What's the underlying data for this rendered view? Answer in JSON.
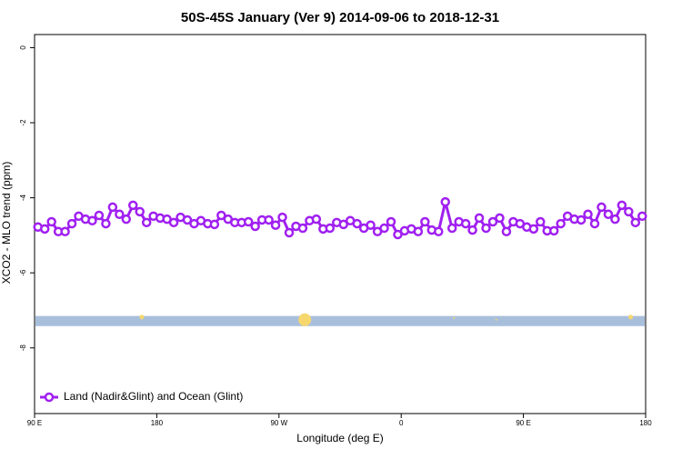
{
  "chart_data": {
    "type": "line",
    "title": "50S-45S January (Ver 9)   2014-09-06 to 2018-12-31",
    "x_label": "Longitude (deg E)",
    "y_label": "XCO2 - MLO trend (ppm)",
    "xlim": [
      90,
      540
    ],
    "xticks": [
      {
        "value": 90,
        "label": "90 E"
      },
      180,
      {
        "value": 270,
        "label": "90 W"
      },
      {
        "value": 360,
        "label": "0"
      },
      {
        "value": 450,
        "label": "90 E"
      },
      {
        "value": 540,
        "label": "180"
      }
    ],
    "ylim": [
      -9.75,
      0.35
    ],
    "yticks": [
      0,
      -2,
      -4,
      -6,
      -8
    ],
    "legend": "bottom-left",
    "series": [
      {
        "name": "Land (Nadir&Glint) and Ocean (Glint)",
        "color": "#a020f0",
        "x": [
          92.5,
          97.5,
          102.5,
          107.5,
          112.5,
          117.5,
          122.5,
          127.5,
          132.5,
          137.5,
          142.5,
          147.5,
          152.5,
          157.5,
          162.5,
          167.5,
          172.5,
          177.5,
          182.5,
          187.5,
          192.5,
          197.5,
          202.5,
          207.5,
          212.5,
          217.5,
          222.5,
          227.5,
          232.5,
          237.5,
          242.5,
          247.5,
          252.5,
          257.5,
          262.5,
          267.5,
          272.5,
          277.5,
          282.5,
          287.5,
          292.5,
          297.5,
          302.5,
          307.5,
          312.5,
          317.5,
          322.5,
          327.5,
          332.5,
          337.5,
          342.5,
          347.5,
          352.5,
          357.5,
          362.5,
          367.5,
          372.5,
          377.5,
          382.5,
          387.5,
          392.5,
          397.5,
          402.5,
          407.5,
          412.5,
          417.5,
          422.5,
          427.5,
          432.5,
          437.5,
          442.5,
          447.5,
          452.5,
          457.5,
          462.5,
          467.5,
          472.5,
          477.5,
          482.5,
          487.5,
          492.5,
          497.5,
          502.5,
          507.5,
          512.5,
          517.5,
          522.5,
          527.5,
          532.5,
          537.5
        ],
        "values": [
          -4.78,
          -4.83,
          -4.64,
          -4.9,
          -4.9,
          -4.69,
          -4.49,
          -4.57,
          -4.61,
          -4.47,
          -4.69,
          -4.25,
          -4.44,
          -4.57,
          -4.2,
          -4.37,
          -4.66,
          -4.49,
          -4.54,
          -4.57,
          -4.66,
          -4.52,
          -4.59,
          -4.69,
          -4.61,
          -4.69,
          -4.71,
          -4.47,
          -4.57,
          -4.66,
          -4.66,
          -4.64,
          -4.76,
          -4.59,
          -4.59,
          -4.73,
          -4.52,
          -4.93,
          -4.76,
          -4.81,
          -4.61,
          -4.57,
          -4.83,
          -4.81,
          -4.66,
          -4.71,
          -4.61,
          -4.69,
          -4.81,
          -4.73,
          -4.9,
          -4.81,
          -4.64,
          -4.98,
          -4.88,
          -4.83,
          -4.9,
          -4.64,
          -4.86,
          -4.9,
          -4.11,
          -4.81,
          -4.64,
          -4.69,
          -4.86,
          -4.54,
          -4.81,
          -4.64,
          -4.54,
          -4.9,
          -4.64,
          -4.69,
          -4.78,
          -4.83,
          -4.64,
          -4.88,
          -4.88,
          -4.69,
          -4.49,
          -4.57,
          -4.59,
          -4.44,
          -4.69,
          -4.25,
          -4.44,
          -4.57,
          -4.2,
          -4.37,
          -4.66,
          -4.49
        ]
      }
    ],
    "band": {
      "values": [
        -7.15,
        -7.42
      ],
      "color": "#a8bfdc"
    },
    "markers": {
      "color": "#f5d76e",
      "x": [
        169,
        289,
        399,
        430,
        529
      ],
      "values": [
        -7.18,
        -7.25,
        -7.2,
        -7.25,
        -7.18
      ],
      "sizes": [
        2.5,
        7,
        1,
        1,
        2.5
      ]
    }
  }
}
